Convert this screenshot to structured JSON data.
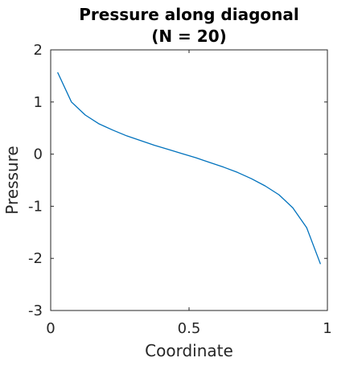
{
  "chart_data": {
    "type": "line",
    "title": "Pressure along diagonal",
    "subtitle": "(N = 20)",
    "xlabel": "Coordinate",
    "ylabel": "Pressure",
    "xlim": [
      0,
      1
    ],
    "ylim": [
      -3,
      2
    ],
    "x_ticks": [
      0,
      0.5,
      1
    ],
    "x_tick_labels": [
      "0",
      "0.5",
      "1"
    ],
    "y_ticks": [
      2,
      1,
      0,
      -1,
      -2,
      -3
    ],
    "y_tick_labels": [
      "2",
      "1",
      "0",
      "-1",
      "-2",
      "-3"
    ],
    "grid": false,
    "series": [
      {
        "color": "#0072BD",
        "x": [
          0.025,
          0.075,
          0.125,
          0.175,
          0.225,
          0.275,
          0.325,
          0.375,
          0.425,
          0.475,
          0.525,
          0.575,
          0.625,
          0.675,
          0.725,
          0.775,
          0.825,
          0.875,
          0.925,
          0.975
        ],
        "y": [
          1.57,
          1.0,
          0.75,
          0.58,
          0.46,
          0.35,
          0.26,
          0.17,
          0.09,
          0.01,
          -0.07,
          -0.16,
          -0.25,
          -0.35,
          -0.47,
          -0.61,
          -0.78,
          -1.03,
          -1.41,
          -2.11
        ]
      }
    ]
  }
}
